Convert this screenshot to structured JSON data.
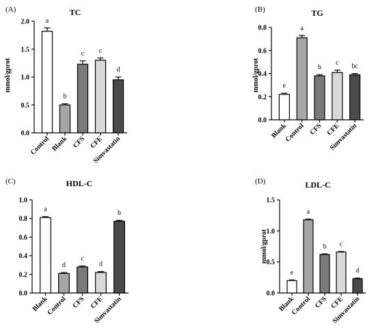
{
  "chart_data": [
    {
      "panel": "(A)",
      "type": "bar",
      "title": "TC",
      "ylabel": "mmol/gprot",
      "ylim": [
        0,
        2.0
      ],
      "yticks": [
        "0.0",
        "0.5",
        "1.0",
        "1.5",
        "2.0"
      ],
      "categories": [
        "Control",
        "Blank",
        "CFS",
        "CFE",
        "Simvastatin"
      ],
      "values": [
        1.82,
        0.5,
        1.23,
        1.3,
        0.95
      ],
      "errors": [
        0.06,
        0.02,
        0.06,
        0.04,
        0.05
      ],
      "letters": [
        "a",
        "b",
        "c",
        "c",
        "d"
      ],
      "colors": [
        "#ffffff",
        "#a6a6a6",
        "#7a7a7a",
        "#d9d9d9",
        "#4a4a4a"
      ]
    },
    {
      "panel": "(B)",
      "type": "bar",
      "title": "TG",
      "ylabel": "mmol/gprot",
      "ylim": [
        0,
        0.8
      ],
      "yticks": [
        "0.0",
        "0.2",
        "0.4",
        "0.6",
        "0.8"
      ],
      "categories": [
        "Blank",
        "Control",
        "CFS",
        "CFE",
        "Simvastatin"
      ],
      "values": [
        0.22,
        0.71,
        0.38,
        0.41,
        0.39
      ],
      "errors": [
        0.01,
        0.02,
        0.01,
        0.02,
        0.01
      ],
      "letters": [
        "e",
        "a",
        "b",
        "c",
        "bc"
      ],
      "colors": [
        "#ffffff",
        "#a6a6a6",
        "#7a7a7a",
        "#d9d9d9",
        "#4a4a4a"
      ]
    },
    {
      "panel": "(C)",
      "type": "bar",
      "title": "HDL-C",
      "ylabel": "",
      "ylim": [
        0,
        1.0
      ],
      "yticks": [
        "0.0",
        "0.2",
        "0.4",
        "0.6",
        "0.8",
        "1.0"
      ],
      "categories": [
        "Blank",
        "Control",
        "CFS",
        "CFE",
        "Simvastatin"
      ],
      "values": [
        0.81,
        0.21,
        0.28,
        0.22,
        0.77
      ],
      "errors": [
        0.01,
        0.01,
        0.01,
        0.01,
        0.01
      ],
      "letters": [
        "a",
        "d",
        "c",
        "d",
        "b"
      ],
      "colors": [
        "#ffffff",
        "#a6a6a6",
        "#7a7a7a",
        "#d9d9d9",
        "#4a4a4a"
      ]
    },
    {
      "panel": "(D)",
      "type": "bar",
      "title": "LDL-C",
      "ylabel": "mmol/gprot",
      "ylim": [
        0,
        1.5
      ],
      "yticks": [
        "0.0",
        "0.5",
        "1.0",
        "1.5"
      ],
      "categories": [
        "Blank",
        "Control",
        "CFS",
        "CFE",
        "Simvastatin"
      ],
      "values": [
        0.2,
        1.18,
        0.62,
        0.66,
        0.23
      ],
      "errors": [
        0.01,
        0.01,
        0.01,
        0.01,
        0.01
      ],
      "letters": [
        "e",
        "a",
        "b",
        "c",
        "d"
      ],
      "colors": [
        "#ffffff",
        "#a6a6a6",
        "#7a7a7a",
        "#d9d9d9",
        "#4a4a4a"
      ]
    }
  ]
}
